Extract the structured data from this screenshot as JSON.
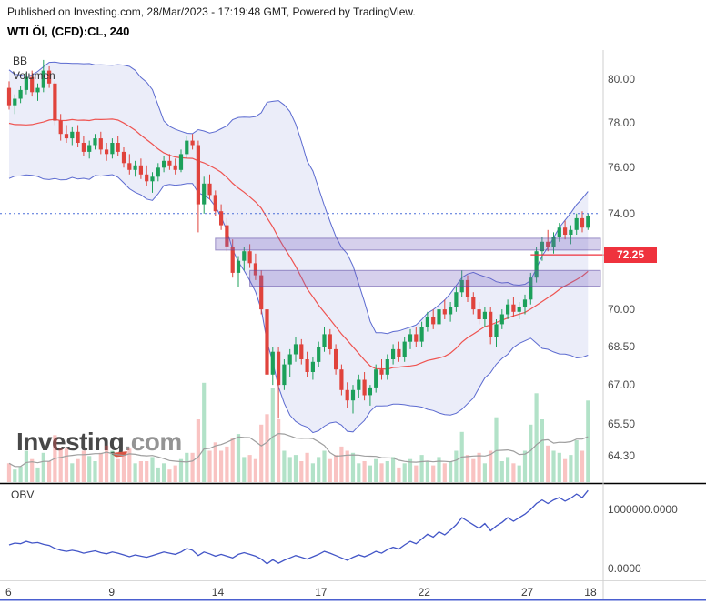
{
  "header": {
    "published_line": "Published on Investing.com, 28/Mar/2023 - 17:19:48 GMT, Powered by TradingView.",
    "symbol_line": "WTI Öl, (CFD):CL, 240"
  },
  "legend": {
    "bb": "BB",
    "volume": "Volumen"
  },
  "watermark": {
    "primary": "Investing",
    "secondary": ".com"
  },
  "price_axis": {
    "ticks": [
      {
        "label": "80.00",
        "price": 80.0
      },
      {
        "label": "78.00",
        "price": 78.0
      },
      {
        "label": "76.00",
        "price": 76.0
      },
      {
        "label": "74.00",
        "price": 74.0
      },
      {
        "label": "70.00",
        "price": 70.0
      },
      {
        "label": "68.50",
        "price": 68.5
      },
      {
        "label": "67.00",
        "price": 67.0
      },
      {
        "label": "65.50",
        "price": 65.5
      },
      {
        "label": "64.30",
        "price": 64.3
      }
    ],
    "last": {
      "label": "72.25",
      "price": 72.25
    }
  },
  "obv_panel": {
    "label": "OBV",
    "ticks": [
      {
        "label": "1000000.0000",
        "value": 1.0
      },
      {
        "label": "0.0000",
        "value": 0.0
      }
    ]
  },
  "time_axis": {
    "labels": [
      {
        "text": "6",
        "bar": 0
      },
      {
        "text": "9",
        "bar": 18
      },
      {
        "text": "14",
        "bar": 36
      },
      {
        "text": "17",
        "bar": 54
      },
      {
        "text": "22",
        "bar": 72
      },
      {
        "text": "27",
        "bar": 90
      },
      {
        "text": "18",
        "bar": 101
      }
    ]
  },
  "chart_data": {
    "type": "candlestick",
    "title": "WTI Öl, (CFD):CL, 240",
    "interval_minutes": 240,
    "price_scale": "log",
    "ylim": [
      63.3,
      81.5
    ],
    "overlays": [
      "Bollinger Bands (20,2)",
      "Volume",
      "Volume MA",
      "OBV"
    ],
    "candles_ohlc": [
      [
        79.6,
        79.9,
        78.6,
        78.8
      ],
      [
        78.8,
        79.3,
        78.4,
        79.1
      ],
      [
        79.1,
        79.7,
        78.9,
        79.5
      ],
      [
        79.5,
        80.3,
        79.3,
        80.1
      ],
      [
        80.1,
        80.4,
        79.2,
        79.4
      ],
      [
        79.4,
        79.8,
        79.0,
        79.6
      ],
      [
        79.6,
        80.9,
        79.4,
        80.4
      ],
      [
        80.4,
        80.6,
        79.6,
        79.8
      ],
      [
        79.8,
        79.9,
        77.9,
        78.1
      ],
      [
        78.1,
        78.4,
        77.2,
        77.5
      ],
      [
        77.5,
        77.9,
        77.1,
        77.3
      ],
      [
        77.3,
        77.8,
        77.0,
        77.6
      ],
      [
        77.6,
        77.9,
        76.9,
        77.1
      ],
      [
        77.1,
        77.4,
        76.5,
        76.7
      ],
      [
        76.7,
        77.2,
        76.4,
        77.0
      ],
      [
        77.0,
        77.5,
        76.8,
        77.3
      ],
      [
        77.3,
        77.6,
        76.6,
        76.8
      ],
      [
        76.8,
        77.1,
        76.3,
        76.6
      ],
      [
        76.6,
        77.3,
        76.4,
        77.1
      ],
      [
        77.1,
        77.4,
        76.5,
        76.7
      ],
      [
        76.7,
        76.9,
        76.0,
        76.2
      ],
      [
        76.2,
        76.6,
        75.7,
        75.9
      ],
      [
        75.9,
        76.3,
        75.6,
        76.1
      ],
      [
        76.1,
        76.4,
        75.5,
        75.7
      ],
      [
        75.7,
        76.1,
        75.2,
        75.4
      ],
      [
        75.4,
        75.8,
        74.9,
        75.6
      ],
      [
        75.6,
        76.2,
        75.4,
        76.0
      ],
      [
        76.0,
        76.5,
        75.8,
        76.3
      ],
      [
        76.3,
        76.6,
        75.9,
        76.1
      ],
      [
        76.1,
        76.4,
        75.7,
        75.9
      ],
      [
        75.9,
        76.8,
        75.8,
        76.6
      ],
      [
        76.6,
        77.4,
        76.4,
        77.2
      ],
      [
        77.2,
        77.5,
        76.8,
        77.0
      ],
      [
        77.0,
        77.2,
        73.2,
        74.4
      ],
      [
        74.4,
        75.6,
        74.0,
        75.3
      ],
      [
        75.3,
        75.7,
        74.6,
        74.8
      ],
      [
        74.8,
        75.0,
        73.9,
        74.1
      ],
      [
        74.1,
        74.4,
        73.3,
        73.5
      ],
      [
        73.5,
        73.8,
        72.4,
        72.6
      ],
      [
        72.6,
        72.9,
        71.3,
        71.5
      ],
      [
        71.5,
        72.2,
        70.9,
        72.0
      ],
      [
        72.0,
        72.6,
        71.6,
        72.4
      ],
      [
        72.4,
        72.7,
        71.7,
        71.9
      ],
      [
        71.9,
        72.3,
        71.2,
        71.4
      ],
      [
        71.4,
        71.6,
        69.8,
        70.0
      ],
      [
        70.0,
        70.2,
        66.8,
        67.4
      ],
      [
        67.4,
        68.5,
        67.0,
        68.3
      ],
      [
        68.3,
        68.5,
        65.7,
        67.0
      ],
      [
        67.0,
        68.0,
        66.8,
        67.8
      ],
      [
        67.8,
        68.4,
        67.3,
        68.2
      ],
      [
        68.2,
        68.9,
        67.9,
        68.6
      ],
      [
        68.6,
        68.8,
        67.8,
        68.0
      ],
      [
        68.0,
        68.3,
        67.3,
        67.5
      ],
      [
        67.5,
        68.1,
        67.2,
        67.9
      ],
      [
        67.9,
        68.7,
        67.7,
        68.5
      ],
      [
        68.5,
        69.3,
        68.3,
        69.0
      ],
      [
        69.0,
        69.2,
        68.2,
        68.4
      ],
      [
        68.4,
        68.6,
        67.4,
        67.6
      ],
      [
        67.6,
        67.8,
        66.6,
        66.8
      ],
      [
        66.8,
        67.1,
        66.1,
        66.4
      ],
      [
        66.4,
        67.0,
        65.9,
        66.8
      ],
      [
        66.8,
        67.4,
        66.5,
        67.2
      ],
      [
        67.2,
        67.5,
        66.4,
        66.6
      ],
      [
        66.6,
        67.0,
        66.2,
        66.9
      ],
      [
        66.9,
        67.8,
        66.7,
        67.6
      ],
      [
        67.6,
        68.0,
        67.2,
        67.4
      ],
      [
        67.4,
        68.2,
        67.2,
        68.0
      ],
      [
        68.0,
        68.6,
        67.8,
        68.4
      ],
      [
        68.4,
        68.7,
        67.9,
        68.1
      ],
      [
        68.1,
        68.9,
        67.9,
        68.7
      ],
      [
        68.7,
        69.2,
        68.4,
        69.0
      ],
      [
        69.0,
        69.3,
        68.5,
        68.7
      ],
      [
        68.7,
        69.5,
        68.5,
        69.3
      ],
      [
        69.3,
        69.9,
        69.1,
        69.7
      ],
      [
        69.7,
        70.0,
        69.2,
        69.4
      ],
      [
        69.4,
        70.2,
        69.3,
        70.0
      ],
      [
        70.0,
        70.4,
        69.6,
        69.8
      ],
      [
        69.8,
        70.3,
        69.5,
        70.1
      ],
      [
        70.1,
        70.9,
        69.9,
        70.7
      ],
      [
        70.7,
        71.6,
        70.5,
        71.2
      ],
      [
        71.2,
        71.4,
        70.3,
        70.5
      ],
      [
        70.5,
        70.7,
        69.8,
        70.0
      ],
      [
        70.0,
        70.3,
        69.4,
        69.6
      ],
      [
        69.6,
        70.1,
        69.3,
        69.9
      ],
      [
        69.9,
        70.1,
        68.6,
        68.9
      ],
      [
        68.9,
        69.6,
        68.5,
        69.4
      ],
      [
        69.4,
        70.0,
        69.2,
        69.8
      ],
      [
        69.8,
        70.4,
        69.6,
        70.2
      ],
      [
        70.2,
        70.5,
        69.7,
        69.9
      ],
      [
        69.9,
        70.3,
        69.6,
        70.1
      ],
      [
        70.1,
        70.6,
        69.8,
        70.4
      ],
      [
        70.4,
        71.5,
        70.2,
        71.3
      ],
      [
        71.3,
        72.6,
        71.1,
        72.4
      ],
      [
        72.4,
        73.0,
        72.0,
        72.8
      ],
      [
        72.8,
        73.3,
        72.4,
        72.6
      ],
      [
        72.6,
        73.2,
        72.3,
        73.0
      ],
      [
        73.0,
        73.6,
        72.8,
        73.4
      ],
      [
        73.4,
        73.7,
        72.9,
        73.1
      ],
      [
        73.1,
        73.5,
        72.7,
        73.3
      ],
      [
        73.3,
        74.0,
        73.1,
        73.8
      ],
      [
        73.8,
        74.1,
        73.2,
        73.4
      ],
      [
        73.4,
        74.0,
        73.3,
        73.9
      ]
    ],
    "volumes": [
      18,
      12,
      15,
      30,
      22,
      14,
      28,
      20,
      45,
      32,
      32,
      18,
      22,
      30,
      25,
      20,
      28,
      35,
      30,
      22,
      26,
      32,
      18,
      20,
      20,
      24,
      14,
      18,
      12,
      16,
      22,
      28,
      28,
      60,
      95,
      30,
      38,
      30,
      34,
      42,
      46,
      24,
      26,
      22,
      55,
      65,
      90,
      60,
      30,
      24,
      26,
      20,
      28,
      18,
      24,
      30,
      22,
      26,
      34,
      30,
      28,
      18,
      20,
      16,
      22,
      18,
      20,
      24,
      14,
      18,
      22,
      16,
      26,
      20,
      16,
      24,
      18,
      20,
      30,
      48,
      26,
      22,
      28,
      18,
      30,
      62,
      20,
      24,
      18,
      16,
      30,
      55,
      85,
      60,
      35,
      30,
      28,
      22,
      26,
      40,
      30,
      78
    ],
    "obv": [
      0.4,
      0.43,
      0.42,
      0.46,
      0.43,
      0.44,
      0.41,
      0.39,
      0.34,
      0.31,
      0.29,
      0.31,
      0.29,
      0.26,
      0.28,
      0.3,
      0.27,
      0.25,
      0.28,
      0.26,
      0.23,
      0.2,
      0.23,
      0.21,
      0.19,
      0.22,
      0.25,
      0.28,
      0.26,
      0.24,
      0.28,
      0.34,
      0.31,
      0.22,
      0.28,
      0.25,
      0.21,
      0.24,
      0.21,
      0.18,
      0.24,
      0.27,
      0.24,
      0.21,
      0.16,
      0.08,
      0.15,
      0.09,
      0.14,
      0.18,
      0.22,
      0.19,
      0.16,
      0.2,
      0.24,
      0.29,
      0.26,
      0.22,
      0.18,
      0.14,
      0.19,
      0.23,
      0.2,
      0.24,
      0.29,
      0.26,
      0.32,
      0.36,
      0.33,
      0.4,
      0.46,
      0.42,
      0.5,
      0.58,
      0.53,
      0.62,
      0.57,
      0.65,
      0.74,
      0.86,
      0.8,
      0.74,
      0.68,
      0.76,
      0.64,
      0.72,
      0.78,
      0.86,
      0.8,
      0.86,
      0.92,
      1.0,
      1.1,
      1.16,
      1.1,
      1.16,
      1.2,
      1.14,
      1.19,
      1.26,
      1.2,
      1.32
    ],
    "levels": {
      "dotted_line_price": 74.0,
      "last_price_line": 72.25,
      "last_price_from_bar": 91,
      "zones": [
        {
          "top": 72.95,
          "bottom": 72.45,
          "from_bar": 36
        },
        {
          "top": 71.6,
          "bottom": 70.95,
          "from_bar": 42
        }
      ]
    }
  },
  "colors": {
    "up": "#1ca05a",
    "down": "#e0433c",
    "vol_up": "rgba(34,171,98,0.35)",
    "vol_down": "rgba(239,83,80,0.35)",
    "vol_ma": "#9e9e9e",
    "bb_line": "#5b6ad0",
    "bb_fill": "rgba(91,106,208,0.12)",
    "bb_mid": "#ef5350",
    "obv_line": "#4255c7",
    "dotted_line": "#4a6fd9",
    "last_price": "#ef323d",
    "zone_fill": "rgba(118,98,192,0.30)",
    "zone_border": "rgba(90,70,160,0.55)",
    "bottom_border": "#4a5fd0"
  }
}
